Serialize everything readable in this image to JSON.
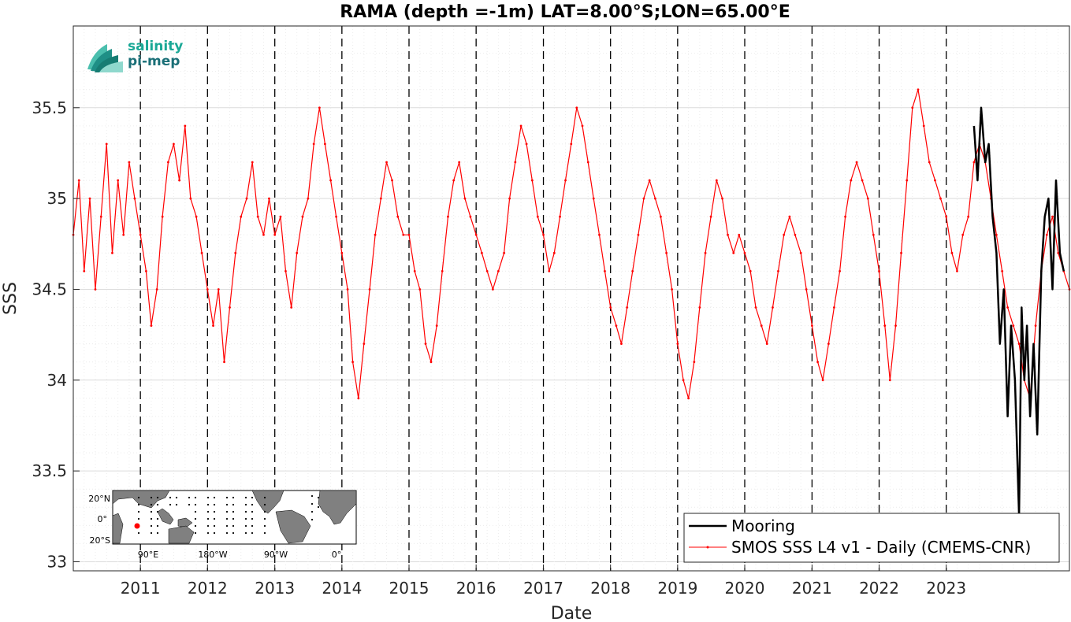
{
  "chart_data": {
    "type": "line",
    "title": "RAMA (depth =-1m) LAT=8.00°S;LON=65.00°E",
    "xlabel": "Date",
    "ylabel": "SSS",
    "xlim": [
      "2010-01-01",
      "2024-11-01"
    ],
    "ylim": [
      32.95,
      35.95
    ],
    "yticks": [
      33,
      33.5,
      34,
      34.5,
      35,
      35.5
    ],
    "ytick_labels": [
      "33",
      "33.5",
      "34",
      "34.5",
      "35",
      "35.5"
    ],
    "xticks": [
      "2011-01-01",
      "2012-01-01",
      "2013-01-01",
      "2014-01-01",
      "2015-01-01",
      "2016-01-01",
      "2017-01-01",
      "2018-01-01",
      "2019-01-01",
      "2020-01-01",
      "2021-01-01",
      "2022-01-01",
      "2023-01-01"
    ],
    "xtick_labels": [
      "2011",
      "2012",
      "2013",
      "2014",
      "2015",
      "2016",
      "2017",
      "2018",
      "2019",
      "2020",
      "2021",
      "2022",
      "2023"
    ],
    "year_boundaries": [
      "2011-01-01",
      "2012-01-01",
      "2013-01-01",
      "2014-01-01",
      "2015-01-01",
      "2016-01-01",
      "2017-01-01",
      "2018-01-01",
      "2019-01-01",
      "2020-01-01",
      "2021-01-01",
      "2022-01-01",
      "2023-01-01"
    ],
    "grid": true,
    "legend_position": "bottom-right",
    "series": [
      {
        "name": "Mooring",
        "color": "#000000",
        "style": "thick-line",
        "x": [
          "2023-06-01",
          "2023-06-20",
          "2023-07-10",
          "2023-08-01",
          "2023-08-20",
          "2023-09-10",
          "2023-10-01",
          "2023-10-20",
          "2023-11-10",
          "2023-12-01",
          "2023-12-20",
          "2024-01-10",
          "2024-02-01",
          "2024-02-15",
          "2024-03-01",
          "2024-03-15",
          "2024-04-01",
          "2024-04-20",
          "2024-05-10",
          "2024-06-01",
          "2024-06-20",
          "2024-07-10",
          "2024-08-01",
          "2024-08-20",
          "2024-09-10",
          "2024-10-01"
        ],
        "y": [
          35.4,
          35.1,
          35.5,
          35.2,
          35.3,
          34.9,
          34.7,
          34.2,
          34.5,
          33.8,
          34.3,
          34.0,
          33.25,
          34.4,
          34.0,
          34.3,
          33.8,
          34.2,
          33.7,
          34.6,
          34.9,
          35.0,
          34.5,
          35.1,
          34.7,
          34.6
        ]
      },
      {
        "name": "SMOS SSS L4 v1 - Daily (CMEMS-CNR)",
        "color": "#ff0000",
        "style": "thin-line-dots",
        "x": [
          "2010-01-01",
          "2010-02-01",
          "2010-03-01",
          "2010-04-01",
          "2010-05-01",
          "2010-06-01",
          "2010-07-01",
          "2010-08-01",
          "2010-09-01",
          "2010-10-01",
          "2010-11-01",
          "2010-12-01",
          "2011-01-01",
          "2011-02-01",
          "2011-03-01",
          "2011-04-01",
          "2011-05-01",
          "2011-06-01",
          "2011-07-01",
          "2011-08-01",
          "2011-09-01",
          "2011-10-01",
          "2011-11-01",
          "2011-12-01",
          "2012-01-01",
          "2012-02-01",
          "2012-03-01",
          "2012-04-01",
          "2012-05-01",
          "2012-06-01",
          "2012-07-01",
          "2012-08-01",
          "2012-09-01",
          "2012-10-01",
          "2012-11-01",
          "2012-12-01",
          "2013-01-01",
          "2013-02-01",
          "2013-03-01",
          "2013-04-01",
          "2013-05-01",
          "2013-06-01",
          "2013-07-01",
          "2013-08-01",
          "2013-09-01",
          "2013-10-01",
          "2013-11-01",
          "2013-12-01",
          "2014-01-01",
          "2014-02-01",
          "2014-03-01",
          "2014-04-01",
          "2014-05-01",
          "2014-06-01",
          "2014-07-01",
          "2014-08-01",
          "2014-09-01",
          "2014-10-01",
          "2014-11-01",
          "2014-12-01",
          "2015-01-01",
          "2015-02-01",
          "2015-03-01",
          "2015-04-01",
          "2015-05-01",
          "2015-06-01",
          "2015-07-01",
          "2015-08-01",
          "2015-09-01",
          "2015-10-01",
          "2015-11-01",
          "2015-12-01",
          "2016-01-01",
          "2016-02-01",
          "2016-03-01",
          "2016-04-01",
          "2016-05-01",
          "2016-06-01",
          "2016-07-01",
          "2016-08-01",
          "2016-09-01",
          "2016-10-01",
          "2016-11-01",
          "2016-12-01",
          "2017-01-01",
          "2017-02-01",
          "2017-03-01",
          "2017-04-01",
          "2017-05-01",
          "2017-06-01",
          "2017-07-01",
          "2017-08-01",
          "2017-09-01",
          "2017-10-01",
          "2017-11-01",
          "2017-12-01",
          "2018-01-01",
          "2018-02-01",
          "2018-03-01",
          "2018-04-01",
          "2018-05-01",
          "2018-06-01",
          "2018-07-01",
          "2018-08-01",
          "2018-09-01",
          "2018-10-01",
          "2018-11-01",
          "2018-12-01",
          "2019-01-01",
          "2019-02-01",
          "2019-03-01",
          "2019-04-01",
          "2019-05-01",
          "2019-06-01",
          "2019-07-01",
          "2019-08-01",
          "2019-09-01",
          "2019-10-01",
          "2019-11-01",
          "2019-12-01",
          "2020-01-01",
          "2020-02-01",
          "2020-03-01",
          "2020-04-01",
          "2020-05-01",
          "2020-06-01",
          "2020-07-01",
          "2020-08-01",
          "2020-09-01",
          "2020-10-01",
          "2020-11-01",
          "2020-12-01",
          "2021-01-01",
          "2021-02-01",
          "2021-03-01",
          "2021-04-01",
          "2021-05-01",
          "2021-06-01",
          "2021-07-01",
          "2021-08-01",
          "2021-09-01",
          "2021-10-01",
          "2021-11-01",
          "2021-12-01",
          "2022-01-01",
          "2022-02-01",
          "2022-03-01",
          "2022-04-01",
          "2022-05-01",
          "2022-06-01",
          "2022-07-01",
          "2022-08-01",
          "2022-09-01",
          "2022-10-01",
          "2022-11-01",
          "2022-12-01",
          "2023-01-01",
          "2023-02-01",
          "2023-03-01",
          "2023-04-01",
          "2023-05-01",
          "2023-06-01",
          "2023-07-01",
          "2023-08-01",
          "2023-09-01",
          "2023-10-01",
          "2023-11-01",
          "2023-12-01",
          "2024-01-01",
          "2024-02-01",
          "2024-03-01",
          "2024-04-01",
          "2024-05-01",
          "2024-06-01",
          "2024-07-01",
          "2024-08-01",
          "2024-09-01",
          "2024-10-01",
          "2024-11-01"
        ],
        "y": [
          34.8,
          35.1,
          34.6,
          35.0,
          34.5,
          34.9,
          35.3,
          34.7,
          35.1,
          34.8,
          35.2,
          35.0,
          34.8,
          34.6,
          34.3,
          34.5,
          34.9,
          35.2,
          35.3,
          35.1,
          35.4,
          35.0,
          34.9,
          34.7,
          34.5,
          34.3,
          34.5,
          34.1,
          34.4,
          34.7,
          34.9,
          35.0,
          35.2,
          34.9,
          34.8,
          35.0,
          34.8,
          34.9,
          34.6,
          34.4,
          34.7,
          34.9,
          35.0,
          35.3,
          35.5,
          35.3,
          35.1,
          34.9,
          34.7,
          34.5,
          34.1,
          33.9,
          34.2,
          34.5,
          34.8,
          35.0,
          35.2,
          35.1,
          34.9,
          34.8,
          34.8,
          34.6,
          34.5,
          34.2,
          34.1,
          34.3,
          34.6,
          34.9,
          35.1,
          35.2,
          35.0,
          34.9,
          34.8,
          34.7,
          34.6,
          34.5,
          34.6,
          34.7,
          35.0,
          35.2,
          35.4,
          35.3,
          35.1,
          34.9,
          34.8,
          34.6,
          34.7,
          34.9,
          35.1,
          35.3,
          35.5,
          35.4,
          35.2,
          35.0,
          34.8,
          34.6,
          34.4,
          34.3,
          34.2,
          34.4,
          34.6,
          34.8,
          35.0,
          35.1,
          35.0,
          34.9,
          34.7,
          34.5,
          34.2,
          34.0,
          33.9,
          34.1,
          34.4,
          34.7,
          34.9,
          35.1,
          35.0,
          34.8,
          34.7,
          34.8,
          34.7,
          34.6,
          34.4,
          34.3,
          34.2,
          34.4,
          34.6,
          34.8,
          34.9,
          34.8,
          34.7,
          34.5,
          34.3,
          34.1,
          34.0,
          34.2,
          34.4,
          34.6,
          34.9,
          35.1,
          35.2,
          35.1,
          35.0,
          34.8,
          34.6,
          34.3,
          34.0,
          34.3,
          34.7,
          35.1,
          35.5,
          35.6,
          35.4,
          35.2,
          35.1,
          35.0,
          34.9,
          34.7,
          34.6,
          34.8,
          34.9,
          35.2,
          35.3,
          35.2,
          35.0,
          34.8,
          34.6,
          34.4,
          34.3,
          34.2,
          34.0,
          33.9,
          34.3,
          34.6,
          34.8,
          34.9,
          34.7,
          34.6,
          34.5
        ]
      }
    ]
  },
  "logo": {
    "line1": "salinity",
    "line2": "pi-mep"
  },
  "inset_map": {
    "lat_labels": [
      "20°N",
      "0°",
      "20°S"
    ],
    "lon_labels": [
      "90°E",
      "180°W",
      "90°W",
      "0°"
    ],
    "marker_color": "#ff0000"
  }
}
